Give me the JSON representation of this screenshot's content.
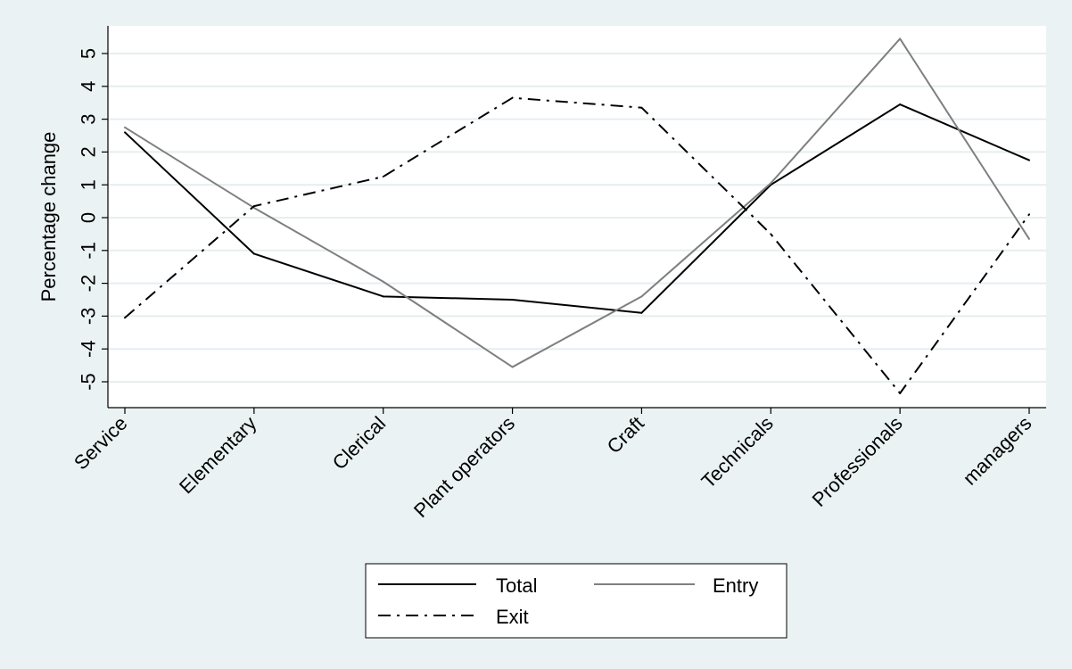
{
  "chart_data": {
    "type": "line",
    "categories": [
      "Service",
      "Elementary",
      "Clerical",
      "Plant operators",
      "Craft",
      "Technicals",
      "Professionals",
      "managers"
    ],
    "series": [
      {
        "name": "Total",
        "values": [
          2.6,
          -1.1,
          -2.4,
          -2.5,
          -2.9,
          1.0,
          3.45,
          1.75
        ],
        "color": "#000000",
        "dash": "solid"
      },
      {
        "name": "Entry",
        "values": [
          2.75,
          0.3,
          -1.95,
          -4.55,
          -2.4,
          1.05,
          5.45,
          -0.65
        ],
        "color": "#7f7f7f",
        "dash": "solid"
      },
      {
        "name": "Exit",
        "values": [
          -3.05,
          0.35,
          1.25,
          3.65,
          3.35,
          -0.5,
          -5.35,
          0.1
        ],
        "color": "#000000",
        "dash": "dashdot"
      }
    ],
    "ylabel": "Percentage change",
    "xlabel": "",
    "yticks": [
      "5",
      "4",
      "3",
      "2",
      "1",
      "0",
      "-1",
      "-2",
      "-3",
      "-4",
      "-5"
    ],
    "ylim": [
      -5.8,
      5.8
    ],
    "grid": true,
    "legend": {
      "position": "bottom",
      "entries": [
        "Total",
        "Entry",
        "Exit"
      ]
    },
    "colors": {
      "background": "#eaf2f3",
      "plot_area": "#ffffff",
      "grid": "#e6eef0"
    }
  }
}
